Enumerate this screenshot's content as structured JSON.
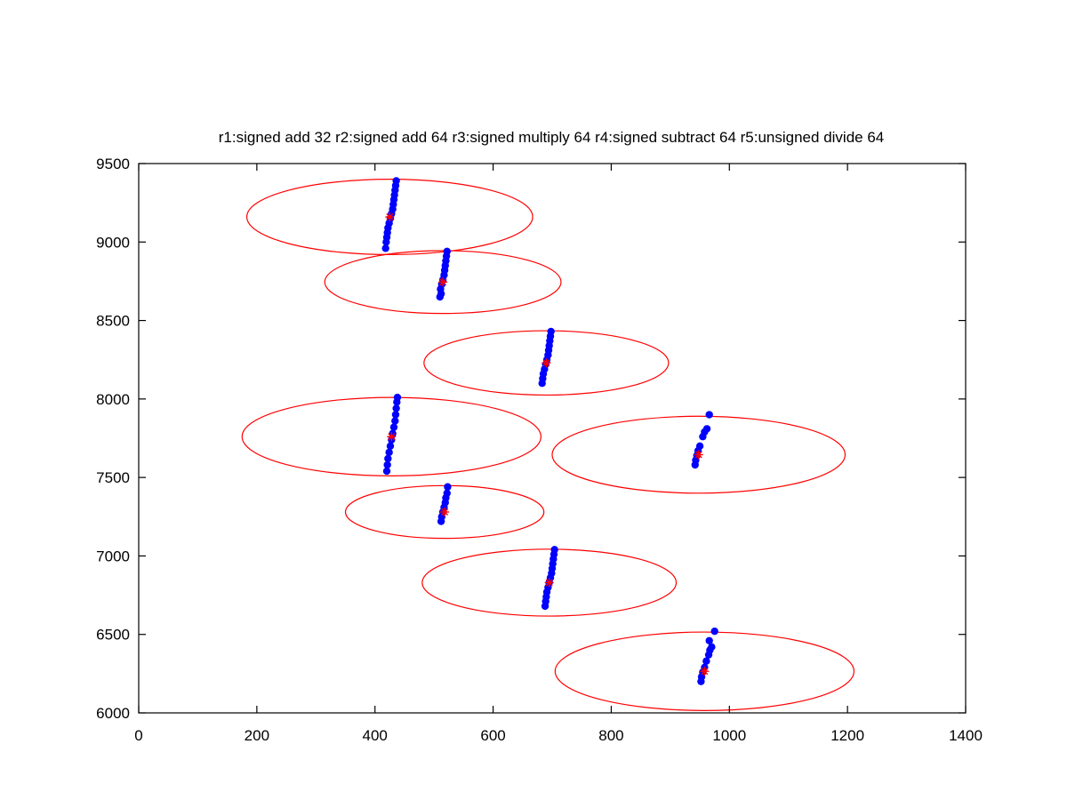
{
  "chart_data": {
    "type": "scatter",
    "title": "r1:signed add 32 r2:signed add 64 r3:signed multiply 64 r4:signed subtract 64 r5:unsigned divide 64",
    "xlabel": "",
    "ylabel": "",
    "xlim": [
      0,
      1400
    ],
    "ylim": [
      6000,
      9500
    ],
    "xticks": [
      "0",
      "200",
      "400",
      "600",
      "800",
      "1000",
      "1200",
      "1400"
    ],
    "yticks": [
      "6000",
      "6500",
      "7000",
      "7500",
      "8000",
      "8500",
      "9000",
      "9500"
    ],
    "grid": false,
    "legend": "none",
    "colors": {
      "points": "#0000ff",
      "centroid": "#ff0000",
      "ellipse": "#ff0000",
      "axis": "#000000"
    },
    "clusters": [
      {
        "center": [
          425,
          9160
        ],
        "rx": 242,
        "ry": 240,
        "points": [
          [
            418,
            8960
          ],
          [
            419,
            9000
          ],
          [
            420,
            9030
          ],
          [
            421,
            9060
          ],
          [
            422,
            9090
          ],
          [
            424,
            9120
          ],
          [
            426,
            9150
          ],
          [
            428,
            9180
          ],
          [
            430,
            9210
          ],
          [
            431,
            9240
          ],
          [
            432,
            9270
          ],
          [
            433,
            9300
          ],
          [
            434,
            9330
          ],
          [
            435,
            9360
          ],
          [
            436,
            9390
          ]
        ]
      },
      {
        "center": [
          515,
          8745
        ],
        "rx": 200,
        "ry": 200,
        "points": [
          [
            510,
            8650
          ],
          [
            512,
            8670
          ],
          [
            511,
            8700
          ],
          [
            513,
            8730
          ],
          [
            515,
            8760
          ],
          [
            517,
            8790
          ],
          [
            518,
            8820
          ],
          [
            519,
            8850
          ],
          [
            520,
            8880
          ],
          [
            521,
            8910
          ],
          [
            522,
            8940
          ]
        ]
      },
      {
        "center": [
          690,
          8230
        ],
        "rx": 207,
        "ry": 205,
        "points": [
          [
            683,
            8100
          ],
          [
            684,
            8130
          ],
          [
            685,
            8160
          ],
          [
            687,
            8190
          ],
          [
            689,
            8220
          ],
          [
            691,
            8250
          ],
          [
            693,
            8280
          ],
          [
            694,
            8310
          ],
          [
            695,
            8340
          ],
          [
            696,
            8370
          ],
          [
            697,
            8400
          ],
          [
            698,
            8430
          ]
        ]
      },
      {
        "center": [
          428,
          7760
        ],
        "rx": 253,
        "ry": 250,
        "points": [
          [
            420,
            7540
          ],
          [
            421,
            7580
          ],
          [
            422,
            7620
          ],
          [
            424,
            7660
          ],
          [
            426,
            7700
          ],
          [
            428,
            7740
          ],
          [
            430,
            7780
          ],
          [
            432,
            7820
          ],
          [
            434,
            7860
          ],
          [
            435,
            7900
          ],
          [
            436,
            7940
          ],
          [
            437,
            7980
          ],
          [
            438,
            8010
          ]
        ]
      },
      {
        "center": [
          948,
          7645
        ],
        "rx": 248,
        "ry": 245,
        "points": [
          [
            942,
            7580
          ],
          [
            943,
            7610
          ],
          [
            945,
            7640
          ],
          [
            947,
            7670
          ],
          [
            950,
            7700
          ],
          [
            955,
            7760
          ],
          [
            958,
            7790
          ],
          [
            962,
            7810
          ],
          [
            966,
            7900
          ]
        ]
      },
      {
        "center": [
          518,
          7280
        ],
        "rx": 168,
        "ry": 168,
        "points": [
          [
            512,
            7220
          ],
          [
            513,
            7250
          ],
          [
            515,
            7280
          ],
          [
            517,
            7310
          ],
          [
            519,
            7340
          ],
          [
            520,
            7370
          ],
          [
            522,
            7400
          ],
          [
            523,
            7440
          ]
        ]
      },
      {
        "center": [
          695,
          6830
        ],
        "rx": 215,
        "ry": 213,
        "points": [
          [
            688,
            6680
          ],
          [
            689,
            6710
          ],
          [
            690,
            6740
          ],
          [
            691,
            6770
          ],
          [
            693,
            6800
          ],
          [
            695,
            6830
          ],
          [
            697,
            6860
          ],
          [
            699,
            6890
          ],
          [
            700,
            6920
          ],
          [
            701,
            6950
          ],
          [
            702,
            6980
          ],
          [
            703,
            7010
          ],
          [
            704,
            7040
          ]
        ]
      },
      {
        "center": [
          958,
          6265
        ],
        "rx": 253,
        "ry": 250,
        "points": [
          [
            952,
            6200
          ],
          [
            953,
            6230
          ],
          [
            955,
            6260
          ],
          [
            958,
            6290
          ],
          [
            961,
            6330
          ],
          [
            965,
            6370
          ],
          [
            967,
            6400
          ],
          [
            970,
            6420
          ],
          [
            966,
            6460
          ],
          [
            975,
            6520
          ]
        ]
      }
    ]
  }
}
